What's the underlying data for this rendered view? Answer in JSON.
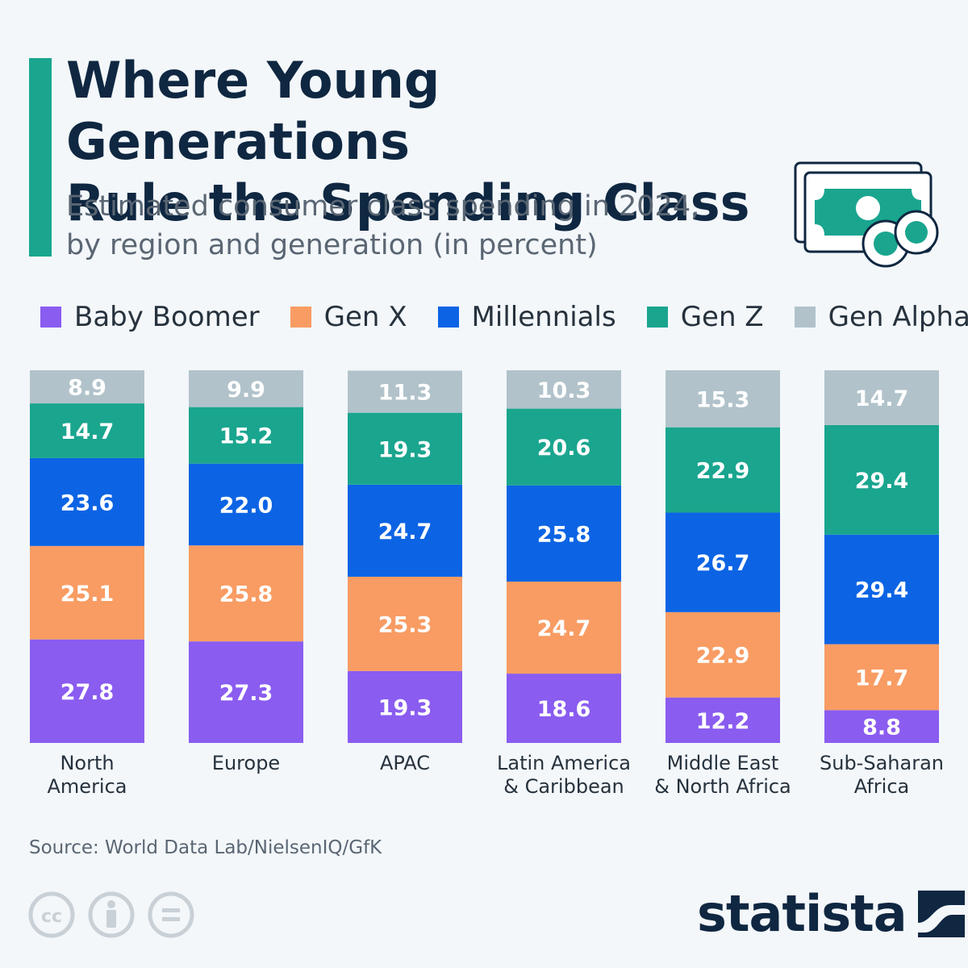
{
  "header": {
    "title_line1": "Where Young Generations",
    "title_line2": "Rule the Spending Class",
    "subtitle_line1": "Estimated consumer class spending in 2024,",
    "subtitle_line2": "by region and generation (in percent)"
  },
  "colors": {
    "baby_boomer": "#8a5cf0",
    "gen_x": "#f89c63",
    "millennials": "#0c64e4",
    "gen_z": "#1aa58f",
    "gen_alpha": "#b1c2ca",
    "accent": "#1aa58f",
    "text_dark": "#0f2741"
  },
  "chart_data": {
    "type": "bar",
    "stacked": true,
    "title": "Where Young Generations Rule the Spending Class",
    "subtitle": "Estimated consumer class spending in 2024, by region and generation (in percent)",
    "categories": [
      [
        "North",
        "America"
      ],
      [
        "Europe"
      ],
      [
        "APAC"
      ],
      [
        "Latin America",
        "& Caribbean"
      ],
      [
        "Middle East",
        "& North Africa"
      ],
      [
        "Sub-Saharan",
        "Africa"
      ]
    ],
    "series": [
      {
        "name": "Baby Boomer",
        "key": "baby_boomer",
        "values": [
          27.8,
          27.3,
          19.3,
          18.6,
          12.2,
          8.8
        ]
      },
      {
        "name": "Gen X",
        "key": "gen_x",
        "values": [
          25.1,
          25.8,
          25.3,
          24.7,
          22.9,
          17.7
        ]
      },
      {
        "name": "Millennials",
        "key": "millennials",
        "values": [
          23.6,
          22.0,
          24.7,
          25.8,
          26.7,
          29.4
        ]
      },
      {
        "name": "Gen Z",
        "key": "gen_z",
        "values": [
          14.7,
          15.2,
          19.3,
          20.6,
          22.9,
          29.4
        ]
      },
      {
        "name": "Gen Alpha",
        "key": "gen_alpha",
        "values": [
          8.9,
          9.9,
          11.3,
          10.3,
          15.3,
          14.7
        ]
      }
    ],
    "ylim": [
      0,
      100
    ],
    "legend_position": "top"
  },
  "footer": {
    "source": "Source: World Data Lab/NielsenIQ/GfK",
    "brand": "statista",
    "license_icons": [
      "cc-icon",
      "attribution-icon",
      "no-derivatives-icon"
    ]
  }
}
